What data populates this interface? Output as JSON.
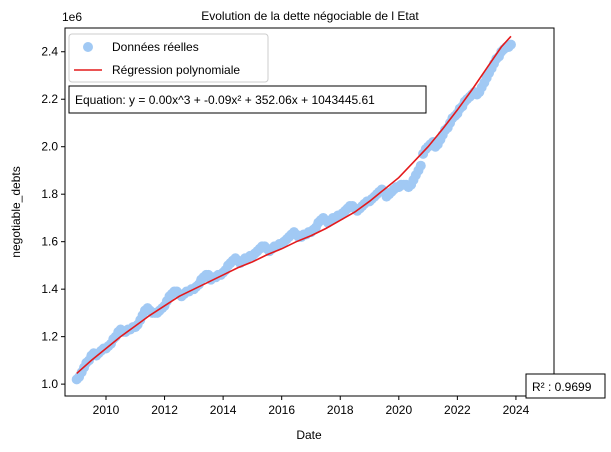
{
  "chart_data": {
    "type": "scatter",
    "title": "Evolution de la dette négociable de l Etat",
    "xlabel": "Date",
    "ylabel": "negotiable_debts",
    "y_offset_label": "1e6",
    "xlim": [
      2008.6,
      2025.3
    ],
    "ylim": [
      0.95,
      2.5
    ],
    "x_ticks": [
      2010,
      2012,
      2014,
      2016,
      2018,
      2020,
      2022,
      2024
    ],
    "x_tick_labels": [
      "2010",
      "2012",
      "2014",
      "2016",
      "2018",
      "2020",
      "2022",
      "2024"
    ],
    "y_ticks": [
      1.0,
      1.2,
      1.4,
      1.6,
      1.8,
      2.0,
      2.2,
      2.4
    ],
    "y_tick_labels": [
      "1.0",
      "1.2",
      "1.4",
      "1.6",
      "1.8",
      "2.0",
      "2.2",
      "2.4"
    ],
    "grid": false,
    "legend_position": "top-left",
    "series": [
      {
        "name": "Données réelles",
        "kind": "scatter",
        "color": "#a1c9f4",
        "x": [
          2009.0,
          2009.08,
          2009.17,
          2009.25,
          2009.33,
          2009.42,
          2009.5,
          2009.58,
          2009.67,
          2009.75,
          2009.83,
          2009.92,
          2010.0,
          2010.08,
          2010.17,
          2010.25,
          2010.33,
          2010.42,
          2010.5,
          2010.58,
          2010.67,
          2010.75,
          2010.83,
          2010.92,
          2011.0,
          2011.08,
          2011.17,
          2011.25,
          2011.33,
          2011.42,
          2011.5,
          2011.58,
          2011.67,
          2011.75,
          2011.83,
          2011.92,
          2012.0,
          2012.08,
          2012.17,
          2012.25,
          2012.33,
          2012.42,
          2012.5,
          2012.58,
          2012.67,
          2012.75,
          2012.83,
          2012.92,
          2013.0,
          2013.08,
          2013.17,
          2013.25,
          2013.33,
          2013.42,
          2013.5,
          2013.58,
          2013.67,
          2013.75,
          2013.83,
          2013.92,
          2014.0,
          2014.08,
          2014.17,
          2014.25,
          2014.33,
          2014.42,
          2014.5,
          2014.58,
          2014.67,
          2014.75,
          2014.83,
          2014.92,
          2015.0,
          2015.08,
          2015.17,
          2015.25,
          2015.33,
          2015.42,
          2015.5,
          2015.58,
          2015.67,
          2015.75,
          2015.83,
          2015.92,
          2016.0,
          2016.08,
          2016.17,
          2016.25,
          2016.33,
          2016.42,
          2016.5,
          2016.58,
          2016.67,
          2016.75,
          2016.83,
          2016.92,
          2017.0,
          2017.08,
          2017.17,
          2017.25,
          2017.33,
          2017.42,
          2017.5,
          2017.58,
          2017.67,
          2017.75,
          2017.83,
          2017.92,
          2018.0,
          2018.08,
          2018.17,
          2018.25,
          2018.33,
          2018.42,
          2018.5,
          2018.58,
          2018.67,
          2018.75,
          2018.83,
          2018.92,
          2019.0,
          2019.08,
          2019.17,
          2019.25,
          2019.33,
          2019.42,
          2019.5,
          2019.58,
          2019.67,
          2019.75,
          2019.83,
          2019.92,
          2020.0,
          2020.08,
          2020.17,
          2020.25,
          2020.33,
          2020.42,
          2020.5,
          2020.58,
          2020.67,
          2020.75,
          2020.83,
          2020.92,
          2021.0,
          2021.08,
          2021.17,
          2021.25,
          2021.33,
          2021.42,
          2021.5,
          2021.58,
          2021.67,
          2021.75,
          2021.83,
          2021.92,
          2022.0,
          2022.08,
          2022.17,
          2022.25,
          2022.33,
          2022.42,
          2022.5,
          2022.58,
          2022.67,
          2022.75,
          2022.83,
          2022.92,
          2023.0,
          2023.08,
          2023.17,
          2023.25,
          2023.33,
          2023.42,
          2023.5,
          2023.58,
          2023.67,
          2023.75,
          2023.83
        ],
        "y": [
          1.02,
          1.03,
          1.05,
          1.07,
          1.09,
          1.1,
          1.12,
          1.13,
          1.12,
          1.13,
          1.14,
          1.15,
          1.15,
          1.16,
          1.17,
          1.19,
          1.2,
          1.22,
          1.23,
          1.22,
          1.22,
          1.23,
          1.23,
          1.24,
          1.24,
          1.25,
          1.27,
          1.29,
          1.31,
          1.32,
          1.31,
          1.3,
          1.3,
          1.3,
          1.31,
          1.32,
          1.33,
          1.35,
          1.37,
          1.38,
          1.39,
          1.39,
          1.38,
          1.37,
          1.38,
          1.39,
          1.39,
          1.4,
          1.4,
          1.41,
          1.42,
          1.44,
          1.45,
          1.46,
          1.46,
          1.44,
          1.45,
          1.45,
          1.46,
          1.46,
          1.47,
          1.48,
          1.5,
          1.51,
          1.52,
          1.53,
          1.52,
          1.51,
          1.52,
          1.53,
          1.53,
          1.54,
          1.54,
          1.55,
          1.56,
          1.57,
          1.58,
          1.58,
          1.57,
          1.56,
          1.57,
          1.58,
          1.58,
          1.59,
          1.59,
          1.6,
          1.61,
          1.62,
          1.63,
          1.64,
          1.63,
          1.62,
          1.62,
          1.63,
          1.63,
          1.64,
          1.64,
          1.65,
          1.66,
          1.68,
          1.69,
          1.7,
          1.69,
          1.68,
          1.69,
          1.7,
          1.7,
          1.71,
          1.71,
          1.72,
          1.73,
          1.74,
          1.75,
          1.75,
          1.74,
          1.73,
          1.74,
          1.75,
          1.76,
          1.77,
          1.77,
          1.78,
          1.79,
          1.8,
          1.81,
          1.82,
          1.81,
          1.79,
          1.8,
          1.81,
          1.82,
          1.83,
          1.83,
          1.84,
          1.84,
          1.84,
          1.83,
          1.84,
          1.86,
          1.88,
          1.9,
          1.92,
          1.97,
          1.99,
          2.0,
          2.01,
          2.02,
          2.0,
          2.01,
          2.03,
          2.05,
          2.07,
          2.08,
          2.1,
          2.12,
          2.13,
          2.14,
          2.16,
          2.17,
          2.19,
          2.2,
          2.21,
          2.22,
          2.23,
          2.22,
          2.23,
          2.25,
          2.27,
          2.29,
          2.31,
          2.33,
          2.35,
          2.37,
          2.38,
          2.4,
          2.41,
          2.42,
          2.42,
          2.43
        ]
      },
      {
        "name": "Régression polynomiale",
        "kind": "line",
        "color": "#e41a1c",
        "x": [
          2009.0,
          2009.5,
          2010.0,
          2010.5,
          2011.0,
          2011.5,
          2012.0,
          2012.5,
          2013.0,
          2013.5,
          2014.0,
          2014.5,
          2015.0,
          2015.5,
          2016.0,
          2016.5,
          2017.0,
          2017.5,
          2018.0,
          2018.5,
          2019.0,
          2019.5,
          2020.0,
          2020.5,
          2021.0,
          2021.5,
          2022.0,
          2022.5,
          2023.0,
          2023.5,
          2023.83
        ],
        "y": [
          1.045,
          1.1,
          1.15,
          1.2,
          1.245,
          1.29,
          1.33,
          1.37,
          1.4,
          1.43,
          1.46,
          1.49,
          1.515,
          1.545,
          1.57,
          1.6,
          1.625,
          1.655,
          1.69,
          1.725,
          1.77,
          1.82,
          1.87,
          1.935,
          2.0,
          2.075,
          2.155,
          2.24,
          2.33,
          2.42,
          2.465
        ]
      }
    ],
    "annotations": {
      "equation": "Equation: y = 0.00x^3 + -0.09x² + 352.06x + 1043445.61",
      "r2": "R² : 0.9699"
    }
  }
}
